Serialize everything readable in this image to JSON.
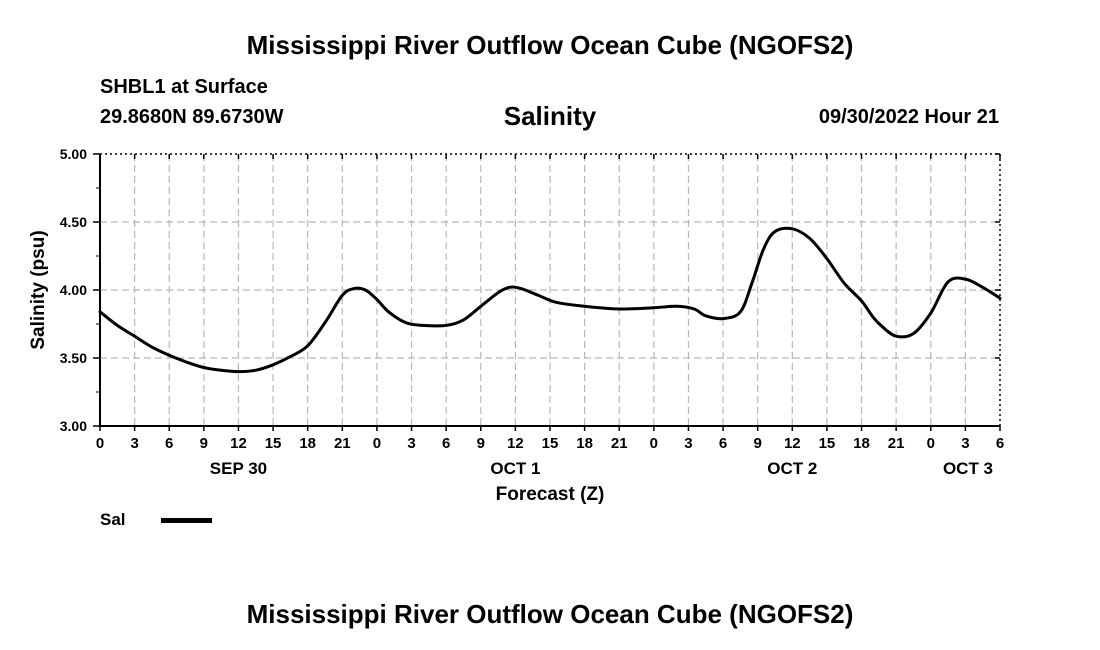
{
  "header": {
    "title": "Mississippi River Outflow Ocean Cube (NGOFS2)",
    "station": "SHBL1 at Surface",
    "coordinates": "29.8680N  89.6730W",
    "variable": "Salinity",
    "datetime": "09/30/2022 Hour 21"
  },
  "footer": {
    "title": "Mississippi River Outflow Ocean Cube (NGOFS2)"
  },
  "legend": {
    "label": "Sal",
    "line_color": "#000000"
  },
  "chart_data": {
    "type": "line",
    "title": "Salinity",
    "xlabel": "Forecast (Z)",
    "ylabel": "Salinity (psu)",
    "xlim": [
      0,
      78
    ],
    "ylim": [
      3.0,
      5.0
    ],
    "grid": true,
    "x_ticks": [
      0,
      3,
      6,
      9,
      12,
      15,
      18,
      21,
      24,
      27,
      30,
      33,
      36,
      39,
      42,
      45,
      48,
      51,
      54,
      57,
      60,
      63,
      66,
      69,
      72,
      75,
      78
    ],
    "x_tick_labels": [
      "0",
      "3",
      "6",
      "9",
      "12",
      "15",
      "18",
      "21",
      "0",
      "3",
      "6",
      "9",
      "12",
      "15",
      "18",
      "21",
      "0",
      "3",
      "6",
      "9",
      "12",
      "15",
      "18",
      "21",
      "0",
      "3",
      "6"
    ],
    "y_ticks": [
      3.0,
      3.5,
      4.0,
      4.5,
      5.0
    ],
    "y_tick_labels": [
      "3.00",
      "3.50",
      "4.00",
      "4.50",
      "5.00"
    ],
    "date_labels": [
      {
        "label": "SEP 30",
        "x": 12
      },
      {
        "label": "OCT 1",
        "x": 36
      },
      {
        "label": "OCT 2",
        "x": 60
      },
      {
        "label": "OCT 3",
        "x": 78
      }
    ],
    "series": [
      {
        "name": "Sal",
        "color": "#000000",
        "x": [
          0,
          1.5,
          3,
          4.5,
          6,
          7.5,
          9,
          10.5,
          12,
          13.5,
          15,
          16.5,
          18,
          19.5,
          21,
          22,
          23,
          24,
          25,
          26.5,
          28,
          30,
          31.5,
          33,
          34.5,
          35.5,
          36.5,
          38,
          39.5,
          42,
          45,
          48,
          50,
          51.5,
          52.5,
          54,
          55.5,
          56.5,
          57.5,
          58.5,
          60,
          61.5,
          63,
          64.5,
          66,
          67,
          67.8,
          69,
          70.5,
          72,
          73.5,
          75,
          76.5,
          78
        ],
        "values": [
          3.84,
          3.74,
          3.66,
          3.58,
          3.52,
          3.47,
          3.43,
          3.41,
          3.4,
          3.41,
          3.45,
          3.51,
          3.59,
          3.76,
          3.96,
          4.01,
          4.0,
          3.93,
          3.84,
          3.76,
          3.74,
          3.74,
          3.78,
          3.88,
          3.98,
          4.02,
          4.01,
          3.96,
          3.91,
          3.88,
          3.86,
          3.87,
          3.88,
          3.86,
          3.81,
          3.79,
          3.84,
          4.05,
          4.3,
          4.43,
          4.45,
          4.38,
          4.23,
          4.05,
          3.92,
          3.8,
          3.73,
          3.66,
          3.68,
          3.83,
          4.06,
          4.08,
          4.02,
          3.94
        ]
      }
    ]
  }
}
